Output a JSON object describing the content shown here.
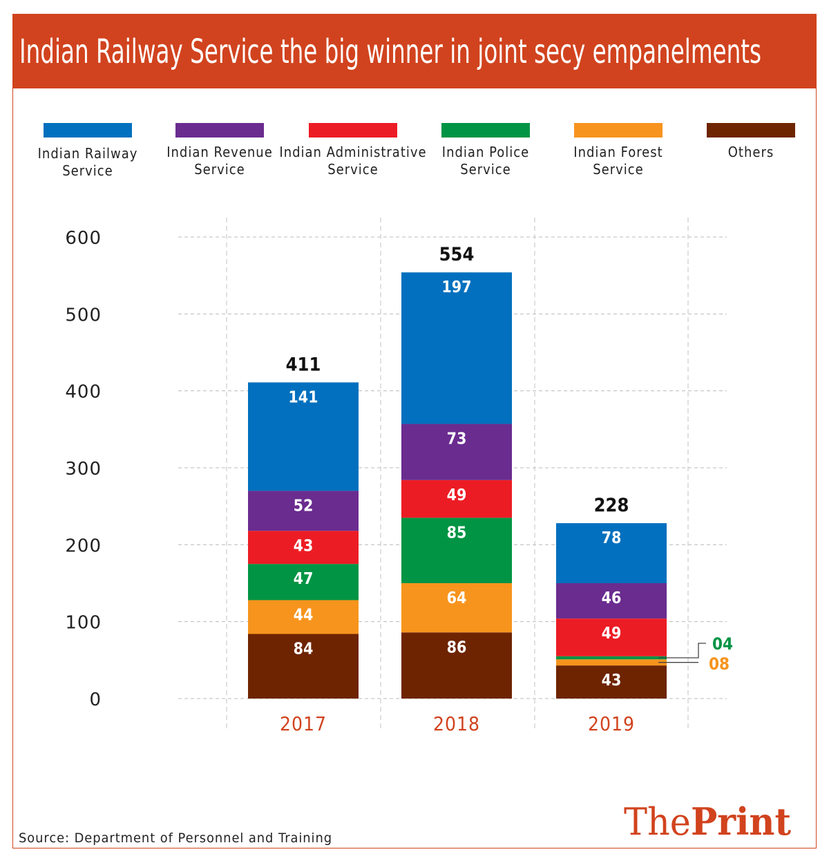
{
  "colors": {
    "brand": "#D1431E",
    "Indian Railway Service": "#0270BE",
    "Indian Revenue Service": "#6A2C8F",
    "Indian Administrative Service": "#EC1C24",
    "Indian Police Service": "#009444",
    "Indian Forest Service": "#F7941D",
    "Others": "#6E2400"
  },
  "logo": {
    "part1": "The",
    "part2": "Print"
  },
  "source": "Source: Department of Personnel and Training",
  "chart_data": {
    "type": "bar",
    "stacked": true,
    "title": "Indian Railway Service the big winner in joint secy empanelments",
    "xlabel": "",
    "ylabel": "",
    "ylim": [
      0,
      600
    ],
    "yticks": [
      "0",
      "100",
      "200",
      "300",
      "400",
      "500",
      "600"
    ],
    "grid": true,
    "legend_position": "top",
    "categories": [
      "2017",
      "2018",
      "2019"
    ],
    "totals": [
      "411",
      "554",
      "228"
    ],
    "series": [
      {
        "name": "Others",
        "legend_lines": [
          "Others"
        ],
        "values": [
          84,
          86,
          43
        ],
        "labels": [
          "84",
          "86",
          "43"
        ]
      },
      {
        "name": "Indian Forest Service",
        "legend_lines": [
          "Indian Forest",
          "Service"
        ],
        "values": [
          44,
          64,
          8
        ],
        "labels": [
          "44",
          "64",
          "08"
        ]
      },
      {
        "name": "Indian Police Service",
        "legend_lines": [
          "Indian Police",
          "Service"
        ],
        "values": [
          47,
          85,
          4
        ],
        "labels": [
          "47",
          "85",
          "04"
        ]
      },
      {
        "name": "Indian Administrative Service",
        "legend_lines": [
          "Indian Administrative",
          "Service"
        ],
        "values": [
          43,
          49,
          49
        ],
        "labels": [
          "43",
          "49",
          "49"
        ]
      },
      {
        "name": "Indian Revenue Service",
        "legend_lines": [
          "Indian Revenue",
          "Service"
        ],
        "values": [
          52,
          73,
          46
        ],
        "labels": [
          "52",
          "73",
          "46"
        ]
      },
      {
        "name": "Indian Railway Service",
        "legend_lines": [
          "Indian Railway",
          "Service"
        ],
        "values": [
          141,
          197,
          78
        ],
        "labels": [
          "141",
          "197",
          "78"
        ]
      }
    ]
  }
}
